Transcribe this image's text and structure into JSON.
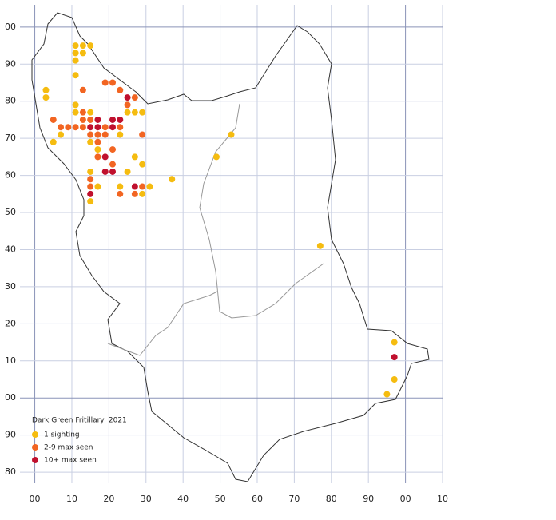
{
  "chart_data": {
    "type": "scatter",
    "title": "Dark Green Fritillary:  2021",
    "xlim": [
      -4,
      110
    ],
    "ylim": [
      -23,
      106
    ],
    "grid": true,
    "legend": "lower-left",
    "xticks": [
      {
        "value": 0,
        "label": "00"
      },
      10,
      20,
      30,
      40,
      50,
      60,
      70,
      80,
      90,
      {
        "value": 100,
        "label": "00"
      },
      {
        "value": 110,
        "label": "10"
      }
    ],
    "yticks": [
      {
        "value": -20,
        "label": "80"
      },
      {
        "value": -10,
        "label": "90"
      },
      {
        "value": 0,
        "label": "00"
      },
      10,
      20,
      30,
      40,
      50,
      60,
      70,
      80,
      90,
      {
        "value": 100,
        "label": "00"
      }
    ],
    "series": [
      {
        "name": "1 sighting",
        "color": "#f5bc10",
        "x": [
          11,
          13,
          15,
          11,
          13,
          11,
          11,
          3,
          3,
          11,
          11,
          15,
          25,
          27,
          29,
          23,
          5,
          7,
          15,
          17,
          27,
          29,
          15,
          25,
          37,
          17,
          23,
          31,
          29,
          15,
          53,
          49,
          77,
          97,
          97,
          95
        ],
        "y": [
          95,
          95,
          95,
          93,
          93,
          91,
          87,
          83,
          81,
          79,
          77,
          77,
          77,
          77,
          77,
          71,
          69,
          71,
          69,
          67,
          65,
          63,
          61,
          61,
          59,
          57,
          57,
          57,
          55,
          53,
          71,
          65,
          41,
          15,
          5,
          1
        ]
      },
      {
        "name": "2-9 max seen",
        "color": "#f26522",
        "x": [
          19,
          21,
          13,
          23,
          25,
          27,
          5,
          7,
          9,
          11,
          13,
          13,
          13,
          15,
          17,
          19,
          19,
          23,
          15,
          17,
          29,
          21,
          17,
          21,
          15,
          15,
          23,
          27,
          29
        ],
        "y": [
          85,
          85,
          83,
          83,
          79,
          81,
          75,
          73,
          73,
          73,
          73,
          75,
          77,
          75,
          71,
          71,
          73,
          73,
          71,
          69,
          71,
          67,
          65,
          63,
          59,
          57,
          55,
          55,
          57
        ]
      },
      {
        "name": "10+ max seen",
        "color": "#c0102e",
        "x": [
          25,
          21,
          23,
          15,
          17,
          17,
          21,
          19,
          19,
          21,
          27,
          15,
          97
        ],
        "y": [
          81,
          75,
          75,
          73,
          73,
          75,
          73,
          65,
          61,
          61,
          57,
          55,
          11
        ]
      }
    ]
  }
}
